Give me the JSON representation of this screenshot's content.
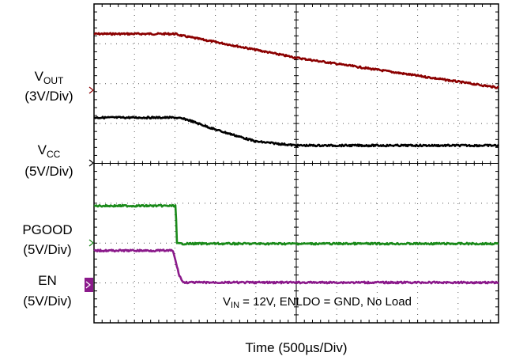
{
  "chart_data": {
    "type": "line",
    "title": "",
    "xlabel": "Time  (500µs/Div)",
    "annotation": {
      "pre": "V",
      "sub": "IN",
      "post": " = 12V, ENLDO = GND, No Load"
    },
    "grid": true,
    "x_divisions": 10,
    "y_divisions": 8,
    "series": [
      {
        "key": "vout",
        "color": "#8b0000",
        "label_main": "V",
        "label_sub": "OUT",
        "scale": "(3V/Div)",
        "points": [
          [
            0,
            3.15
          ],
          [
            2.0,
            3.15
          ],
          [
            2.2,
            3.1
          ],
          [
            3.5,
            2.85
          ],
          [
            5.0,
            2.55
          ],
          [
            7.0,
            2.25
          ],
          [
            9.0,
            1.95
          ],
          [
            10.0,
            1.8
          ]
        ]
      },
      {
        "key": "vcc",
        "color": "#000000",
        "label_main": "V",
        "label_sub": "CC",
        "scale": "(5V/Div)",
        "points": [
          [
            0,
            1.05
          ],
          [
            2.0,
            1.05
          ],
          [
            2.3,
            1.0
          ],
          [
            3.0,
            0.75
          ],
          [
            4.0,
            0.45
          ],
          [
            5.0,
            0.35
          ],
          [
            10.0,
            0.35
          ]
        ]
      },
      {
        "key": "pgood",
        "color": "#1a8a1a",
        "label_main": "PGOOD",
        "label_sub": "",
        "scale": "(5V/Div)",
        "points": [
          [
            0,
            0.95
          ],
          [
            2.02,
            0.95
          ],
          [
            2.05,
            0
          ],
          [
            10.0,
            0
          ]
        ]
      },
      {
        "key": "en",
        "color": "#8b1a8b",
        "label_main": "EN",
        "label_sub": "",
        "scale": "(5V/Div)",
        "points": [
          [
            0,
            0.8
          ],
          [
            1.95,
            0.8
          ],
          [
            2.1,
            0.2
          ],
          [
            2.2,
            0
          ],
          [
            10.0,
            0
          ]
        ]
      }
    ]
  }
}
